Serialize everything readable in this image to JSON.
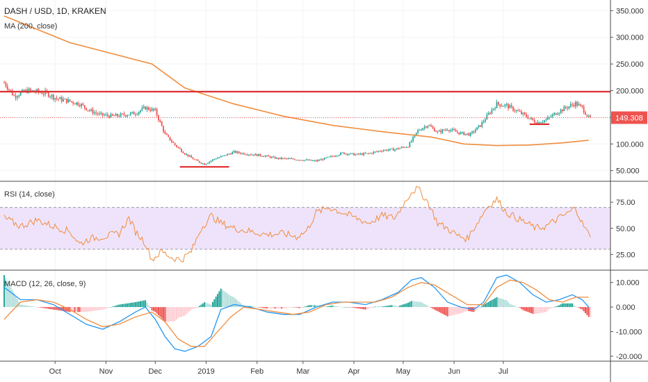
{
  "chart_data": {
    "type": "candlestick",
    "main": {
      "title": "DASH / USD, 1D, KRAKEN",
      "indicator_label": "MA (200, close)",
      "y_ticks": [
        "350.000",
        "300.000",
        "250.000",
        "200.000",
        "150.000",
        "100.000",
        "50.000"
      ],
      "ylim": [
        30,
        370
      ],
      "last_price_label": "149.308",
      "last_price": 149.3,
      "resistance_level": 198,
      "close": [
        {
          "t": 0,
          "v": 215
        },
        {
          "t": 6,
          "v": 190
        },
        {
          "t": 14,
          "v": 200
        },
        {
          "t": 20,
          "v": 198
        },
        {
          "t": 26,
          "v": 195
        },
        {
          "t": 32,
          "v": 185
        },
        {
          "t": 40,
          "v": 180
        },
        {
          "t": 46,
          "v": 175
        },
        {
          "t": 52,
          "v": 163
        },
        {
          "t": 58,
          "v": 155
        },
        {
          "t": 66,
          "v": 152
        },
        {
          "t": 74,
          "v": 155
        },
        {
          "t": 80,
          "v": 158
        },
        {
          "t": 86,
          "v": 168
        },
        {
          "t": 92,
          "v": 162
        },
        {
          "t": 98,
          "v": 118
        },
        {
          "t": 104,
          "v": 98
        },
        {
          "t": 110,
          "v": 82
        },
        {
          "t": 116,
          "v": 70
        },
        {
          "t": 122,
          "v": 62
        },
        {
          "t": 128,
          "v": 72
        },
        {
          "t": 134,
          "v": 78
        },
        {
          "t": 140,
          "v": 85
        },
        {
          "t": 146,
          "v": 82
        },
        {
          "t": 152,
          "v": 80
        },
        {
          "t": 158,
          "v": 78
        },
        {
          "t": 166,
          "v": 73
        },
        {
          "t": 174,
          "v": 72
        },
        {
          "t": 182,
          "v": 70
        },
        {
          "t": 190,
          "v": 68
        },
        {
          "t": 198,
          "v": 75
        },
        {
          "t": 206,
          "v": 83
        },
        {
          "t": 214,
          "v": 80
        },
        {
          "t": 222,
          "v": 82
        },
        {
          "t": 230,
          "v": 88
        },
        {
          "t": 238,
          "v": 90
        },
        {
          "t": 246,
          "v": 96
        },
        {
          "t": 252,
          "v": 125
        },
        {
          "t": 258,
          "v": 136
        },
        {
          "t": 264,
          "v": 122
        },
        {
          "t": 270,
          "v": 128
        },
        {
          "t": 278,
          "v": 120
        },
        {
          "t": 284,
          "v": 118
        },
        {
          "t": 290,
          "v": 135
        },
        {
          "t": 296,
          "v": 160
        },
        {
          "t": 300,
          "v": 175
        },
        {
          "t": 306,
          "v": 172
        },
        {
          "t": 312,
          "v": 162
        },
        {
          "t": 318,
          "v": 152
        },
        {
          "t": 324,
          "v": 140
        },
        {
          "t": 330,
          "v": 145
        },
        {
          "t": 336,
          "v": 158
        },
        {
          "t": 342,
          "v": 168
        },
        {
          "t": 348,
          "v": 176
        },
        {
          "t": 352,
          "v": 168
        },
        {
          "t": 356,
          "v": 149
        }
      ],
      "ma200": [
        {
          "t": 0,
          "v": 340
        },
        {
          "t": 40,
          "v": 290
        },
        {
          "t": 90,
          "v": 250
        },
        {
          "t": 110,
          "v": 205
        },
        {
          "t": 140,
          "v": 175
        },
        {
          "t": 170,
          "v": 152
        },
        {
          "t": 200,
          "v": 135
        },
        {
          "t": 230,
          "v": 123
        },
        {
          "t": 260,
          "v": 113
        },
        {
          "t": 280,
          "v": 100
        },
        {
          "t": 300,
          "v": 97
        },
        {
          "t": 320,
          "v": 98
        },
        {
          "t": 340,
          "v": 102
        },
        {
          "t": 356,
          "v": 107
        }
      ],
      "support_marks": [
        {
          "t0": 107,
          "t1": 137,
          "v": 57
        },
        {
          "t0": 320,
          "t1": 332,
          "v": 137
        }
      ]
    },
    "rsi": {
      "label": "RSI (14, close)",
      "y_ticks": [
        "75.00",
        "50.00",
        "25.00"
      ],
      "ylim": [
        10,
        95
      ],
      "band": [
        30,
        70
      ],
      "values": [
        {
          "t": 0,
          "v": 60
        },
        {
          "t": 10,
          "v": 52
        },
        {
          "t": 20,
          "v": 58
        },
        {
          "t": 30,
          "v": 52
        },
        {
          "t": 40,
          "v": 47
        },
        {
          "t": 46,
          "v": 35
        },
        {
          "t": 52,
          "v": 40
        },
        {
          "t": 60,
          "v": 42
        },
        {
          "t": 70,
          "v": 45
        },
        {
          "t": 76,
          "v": 60
        },
        {
          "t": 80,
          "v": 47
        },
        {
          "t": 86,
          "v": 36
        },
        {
          "t": 90,
          "v": 20
        },
        {
          "t": 96,
          "v": 28
        },
        {
          "t": 102,
          "v": 22
        },
        {
          "t": 108,
          "v": 20
        },
        {
          "t": 114,
          "v": 28
        },
        {
          "t": 120,
          "v": 50
        },
        {
          "t": 126,
          "v": 62
        },
        {
          "t": 132,
          "v": 55
        },
        {
          "t": 140,
          "v": 50
        },
        {
          "t": 150,
          "v": 47
        },
        {
          "t": 160,
          "v": 44
        },
        {
          "t": 170,
          "v": 45
        },
        {
          "t": 178,
          "v": 42
        },
        {
          "t": 184,
          "v": 47
        },
        {
          "t": 190,
          "v": 65
        },
        {
          "t": 198,
          "v": 70
        },
        {
          "t": 206,
          "v": 65
        },
        {
          "t": 214,
          "v": 60
        },
        {
          "t": 222,
          "v": 55
        },
        {
          "t": 230,
          "v": 62
        },
        {
          "t": 238,
          "v": 60
        },
        {
          "t": 244,
          "v": 75
        },
        {
          "t": 248,
          "v": 85
        },
        {
          "t": 252,
          "v": 88
        },
        {
          "t": 258,
          "v": 75
        },
        {
          "t": 264,
          "v": 55
        },
        {
          "t": 270,
          "v": 50
        },
        {
          "t": 276,
          "v": 43
        },
        {
          "t": 282,
          "v": 40
        },
        {
          "t": 288,
          "v": 55
        },
        {
          "t": 294,
          "v": 70
        },
        {
          "t": 300,
          "v": 78
        },
        {
          "t": 306,
          "v": 65
        },
        {
          "t": 312,
          "v": 60
        },
        {
          "t": 318,
          "v": 55
        },
        {
          "t": 324,
          "v": 50
        },
        {
          "t": 330,
          "v": 52
        },
        {
          "t": 338,
          "v": 60
        },
        {
          "t": 344,
          "v": 65
        },
        {
          "t": 348,
          "v": 70
        },
        {
          "t": 352,
          "v": 55
        },
        {
          "t": 356,
          "v": 44
        }
      ]
    },
    "macd": {
      "label": "MACD (12, 26, close, 9)",
      "y_ticks": [
        "10.000",
        "0.000",
        "-10.000",
        "-20.000"
      ],
      "ylim": [
        -22,
        15
      ],
      "macd_line": [
        {
          "t": 0,
          "v": 8
        },
        {
          "t": 10,
          "v": 3
        },
        {
          "t": 20,
          "v": 3
        },
        {
          "t": 30,
          "v": 1
        },
        {
          "t": 40,
          "v": -3
        },
        {
          "t": 50,
          "v": -7
        },
        {
          "t": 60,
          "v": -9
        },
        {
          "t": 70,
          "v": -6
        },
        {
          "t": 80,
          "v": -2
        },
        {
          "t": 86,
          "v": 0
        },
        {
          "t": 92,
          "v": -5
        },
        {
          "t": 98,
          "v": -12
        },
        {
          "t": 104,
          "v": -17
        },
        {
          "t": 110,
          "v": -18
        },
        {
          "t": 118,
          "v": -16
        },
        {
          "t": 126,
          "v": -12
        },
        {
          "t": 132,
          "v": -1
        },
        {
          "t": 140,
          "v": 1
        },
        {
          "t": 150,
          "v": 0
        },
        {
          "t": 160,
          "v": -2
        },
        {
          "t": 170,
          "v": -3
        },
        {
          "t": 180,
          "v": -3
        },
        {
          "t": 190,
          "v": 0
        },
        {
          "t": 200,
          "v": 2
        },
        {
          "t": 210,
          "v": 2
        },
        {
          "t": 220,
          "v": 1
        },
        {
          "t": 230,
          "v": 3
        },
        {
          "t": 240,
          "v": 6
        },
        {
          "t": 248,
          "v": 11
        },
        {
          "t": 254,
          "v": 12
        },
        {
          "t": 262,
          "v": 8
        },
        {
          "t": 270,
          "v": 2
        },
        {
          "t": 278,
          "v": 0
        },
        {
          "t": 286,
          "v": -1
        },
        {
          "t": 292,
          "v": 2
        },
        {
          "t": 300,
          "v": 12
        },
        {
          "t": 306,
          "v": 13
        },
        {
          "t": 314,
          "v": 10
        },
        {
          "t": 322,
          "v": 5
        },
        {
          "t": 330,
          "v": 2
        },
        {
          "t": 338,
          "v": 3
        },
        {
          "t": 346,
          "v": 5
        },
        {
          "t": 352,
          "v": 3
        },
        {
          "t": 356,
          "v": 0
        }
      ],
      "signal_line": [
        {
          "t": 0,
          "v": -5
        },
        {
          "t": 10,
          "v": 2
        },
        {
          "t": 20,
          "v": 3
        },
        {
          "t": 30,
          "v": 2
        },
        {
          "t": 40,
          "v": -1
        },
        {
          "t": 50,
          "v": -5
        },
        {
          "t": 60,
          "v": -8
        },
        {
          "t": 70,
          "v": -7
        },
        {
          "t": 80,
          "v": -4
        },
        {
          "t": 90,
          "v": -2
        },
        {
          "t": 98,
          "v": -6
        },
        {
          "t": 106,
          "v": -13
        },
        {
          "t": 114,
          "v": -16
        },
        {
          "t": 122,
          "v": -16
        },
        {
          "t": 130,
          "v": -10
        },
        {
          "t": 138,
          "v": -4
        },
        {
          "t": 146,
          "v": 0
        },
        {
          "t": 156,
          "v": -1
        },
        {
          "t": 166,
          "v": -2
        },
        {
          "t": 176,
          "v": -3
        },
        {
          "t": 186,
          "v": -2
        },
        {
          "t": 196,
          "v": 1
        },
        {
          "t": 206,
          "v": 2
        },
        {
          "t": 216,
          "v": 2
        },
        {
          "t": 226,
          "v": 2
        },
        {
          "t": 236,
          "v": 4
        },
        {
          "t": 246,
          "v": 8
        },
        {
          "t": 254,
          "v": 10
        },
        {
          "t": 262,
          "v": 9
        },
        {
          "t": 272,
          "v": 5
        },
        {
          "t": 282,
          "v": 1
        },
        {
          "t": 292,
          "v": 1
        },
        {
          "t": 300,
          "v": 8
        },
        {
          "t": 308,
          "v": 11
        },
        {
          "t": 316,
          "v": 10
        },
        {
          "t": 324,
          "v": 7
        },
        {
          "t": 332,
          "v": 3
        },
        {
          "t": 340,
          "v": 2
        },
        {
          "t": 348,
          "v": 4
        },
        {
          "t": 356,
          "v": 4
        }
      ]
    },
    "x_labels": [
      {
        "t": 31,
        "label": "Oct"
      },
      {
        "t": 62,
        "label": "Nov"
      },
      {
        "t": 92,
        "label": "Dec"
      },
      {
        "t": 123,
        "label": "2019"
      },
      {
        "t": 154,
        "label": "Feb"
      },
      {
        "t": 182,
        "label": "Mar"
      },
      {
        "t": 213,
        "label": "Apr"
      },
      {
        "t": 243,
        "label": "May"
      },
      {
        "t": 274,
        "label": "Jun"
      },
      {
        "t": 304,
        "label": "Jul"
      }
    ],
    "x_domain": [
      0,
      365
    ],
    "colors": {
      "up": "#26a69a",
      "down": "#ef5350",
      "ma": "#f08c3c",
      "rsi": "#f08c3c",
      "rsi_band": "#efe3fb",
      "macd_line": "#2196f3",
      "signal_line": "#f08c3c",
      "hist_up": "#26a69a",
      "hist_up_weak": "#b2dfdb",
      "hist_down": "#ef5350",
      "hist_down_weak": "#ffcdd2",
      "resistance": "#e03030",
      "price_tag": "#ef5350"
    }
  }
}
